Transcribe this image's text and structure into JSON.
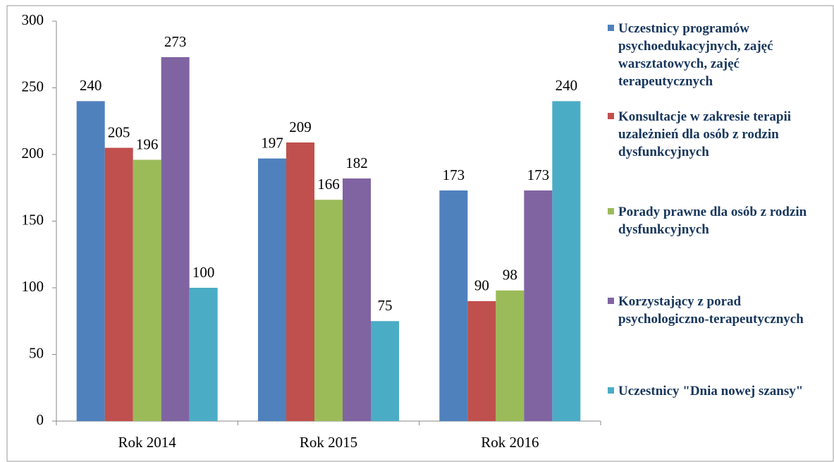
{
  "chart_data": {
    "type": "bar",
    "categories": [
      "Rok 2014",
      "Rok 2015",
      "Rok 2016"
    ],
    "series": [
      {
        "name": "Uczestnicy programów psychoedukacyjnych, zajęć warsztatowych, zajęć terapeutycznych",
        "color": "#4f81bd",
        "values": [
          240,
          197,
          173
        ]
      },
      {
        "name": "Konsultacje  w zakresie terapii uzależnień  dla osób z rodzin dysfunkcyjnych",
        "color": "#c0504d",
        "values": [
          205,
          209,
          90
        ]
      },
      {
        "name": "Porady prawne dla osób z rodzin dysfunkcyjnych",
        "color": "#9bbb59",
        "values": [
          196,
          166,
          98
        ]
      },
      {
        "name": "Korzystający z porad psychologiczno-terapeutycznych",
        "color": "#8064a2",
        "values": [
          273,
          182,
          173
        ]
      },
      {
        "name": "Uczestnicy \"Dnia nowej szansy\"",
        "color": "#4bacc6",
        "values": [
          100,
          75,
          240
        ]
      }
    ],
    "ylim": [
      0,
      300
    ],
    "yticks": [
      0,
      50,
      100,
      150,
      200,
      250,
      300
    ],
    "legend": "right"
  }
}
